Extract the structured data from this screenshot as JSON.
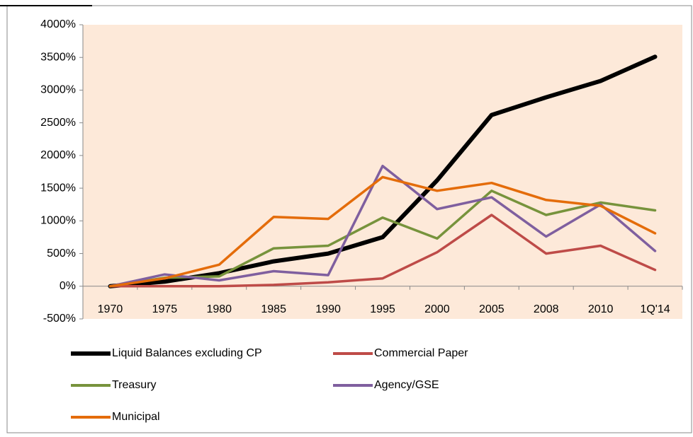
{
  "chart_data": {
    "type": "line",
    "categories": [
      "1970",
      "1975",
      "1980",
      "1985",
      "1990",
      "1995",
      "2000",
      "2005",
      "2008",
      "2010",
      "1Q'14"
    ],
    "series": [
      {
        "name": "Liquid Balances excluding CP",
        "color": "#000000",
        "values": [
          0,
          70,
          200,
          380,
          500,
          750,
          1620,
          2620,
          2890,
          3140,
          3510
        ]
      },
      {
        "name": "Commercial Paper",
        "color": "#be4b48",
        "values": [
          0,
          0,
          0,
          20,
          60,
          120,
          520,
          1090,
          500,
          620,
          250
        ]
      },
      {
        "name": "Treasury",
        "color": "#77933c",
        "values": [
          0,
          130,
          150,
          580,
          620,
          1050,
          730,
          1460,
          1090,
          1280,
          1160
        ]
      },
      {
        "name": "Agency/GSE",
        "color": "#7f5f9f",
        "values": [
          0,
          180,
          90,
          230,
          170,
          1840,
          1180,
          1360,
          760,
          1250,
          540
        ]
      },
      {
        "name": "Municipal",
        "color": "#e46c0a",
        "values": [
          0,
          120,
          330,
          1060,
          1030,
          1670,
          1460,
          1580,
          1320,
          1230,
          810
        ]
      }
    ],
    "ylim": [
      -500,
      4000
    ],
    "yticks": [
      {
        "value": -500,
        "label": "-500%"
      },
      {
        "value": 0,
        "label": "0%"
      },
      {
        "value": 500,
        "label": "500%"
      },
      {
        "value": 1000,
        "label": "1000%"
      },
      {
        "value": 1500,
        "label": "1500%"
      },
      {
        "value": 2000,
        "label": "2000%"
      },
      {
        "value": 2500,
        "label": "2500%"
      },
      {
        "value": 3000,
        "label": "3000%"
      },
      {
        "value": 3500,
        "label": "3500%"
      },
      {
        "value": 4000,
        "label": "4000%"
      }
    ],
    "grid": false,
    "legend": "bottom"
  }
}
